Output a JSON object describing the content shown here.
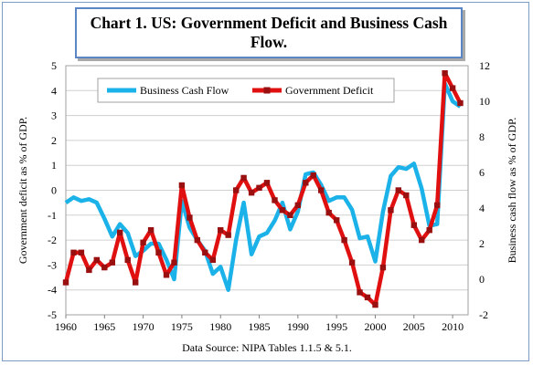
{
  "chart_data": {
    "type": "line",
    "title": "Chart 1. US: Government Deficit and Business Cash Flow.",
    "source_note": "Data Source: NIPA Tables 1.1.5 & 5.1.",
    "x": [
      1960,
      1961,
      1962,
      1963,
      1964,
      1965,
      1966,
      1967,
      1968,
      1969,
      1970,
      1971,
      1972,
      1973,
      1974,
      1975,
      1976,
      1977,
      1978,
      1979,
      1980,
      1981,
      1982,
      1983,
      1984,
      1985,
      1986,
      1987,
      1988,
      1989,
      1990,
      1991,
      1992,
      1993,
      1994,
      1995,
      1996,
      1997,
      1998,
      1999,
      2000,
      2001,
      2002,
      2003,
      2004,
      2005,
      2006,
      2007,
      2008,
      2009,
      2010,
      2011
    ],
    "x_axis": {
      "ticks": [
        1960,
        1965,
        1970,
        1975,
        1980,
        1985,
        1990,
        1995,
        2000,
        2005,
        2010
      ],
      "range": [
        1960,
        2012
      ]
    },
    "y_left": {
      "label": "Government deficit as % of GDP.",
      "range": [
        -5,
        5
      ],
      "ticks": [
        "-5",
        "-4",
        "-3",
        "-2",
        "-1",
        "0",
        "1",
        "2",
        "3",
        "4",
        "5"
      ]
    },
    "y_right": {
      "label": "Business cash flow as % of GDP.",
      "range": [
        -2,
        12
      ],
      "ticks": [
        "-2",
        "0",
        "2",
        "4",
        "6",
        "8",
        "10",
        "12"
      ]
    },
    "series": [
      {
        "name": "Business Cash Flow",
        "axis": "right",
        "color": "#1ab2e8",
        "marker": "none",
        "values": [
          4.3,
          4.6,
          4.4,
          4.5,
          4.3,
          3.4,
          2.4,
          3.1,
          2.6,
          1.3,
          1.6,
          2.0,
          2.0,
          1.1,
          0.0,
          4.4,
          2.9,
          2.2,
          1.6,
          0.3,
          0.7,
          -0.6,
          2.2,
          4.3,
          1.4,
          2.4,
          2.6,
          3.3,
          4.3,
          2.8,
          3.8,
          5.9,
          6.0,
          5.3,
          4.4,
          4.6,
          4.6,
          3.9,
          2.3,
          2.4,
          1.0,
          3.8,
          5.8,
          6.3,
          6.2,
          6.5,
          5.1,
          3.0,
          3.1,
          11.0,
          10.0,
          9.7
        ]
      },
      {
        "name": "Government Deficit",
        "axis": "left",
        "color": "#e01010",
        "marker": "square",
        "marker_color": "#9a1010",
        "values": [
          -3.7,
          -2.5,
          -2.5,
          -3.2,
          -2.8,
          -3.1,
          -2.9,
          -1.7,
          -2.8,
          -3.7,
          -2.1,
          -1.6,
          -2.5,
          -3.4,
          -2.9,
          0.2,
          -1.1,
          -2.0,
          -2.5,
          -2.8,
          -1.6,
          -1.8,
          0.0,
          0.5,
          -0.1,
          0.1,
          0.3,
          -0.4,
          -0.8,
          -1.0,
          -0.6,
          0.3,
          0.6,
          0.0,
          -0.9,
          -1.2,
          -2.0,
          -2.9,
          -4.1,
          -4.3,
          -4.6,
          -3.1,
          -0.8,
          0.0,
          -0.2,
          -1.4,
          -2.0,
          -1.6,
          -0.6,
          4.7,
          4.1,
          3.5
        ]
      }
    ],
    "legend": {
      "placement": "top-left",
      "layout": "horizontal"
    },
    "grid": {
      "horizontal": true,
      "vertical": false,
      "color": "#d0d0d0"
    }
  }
}
